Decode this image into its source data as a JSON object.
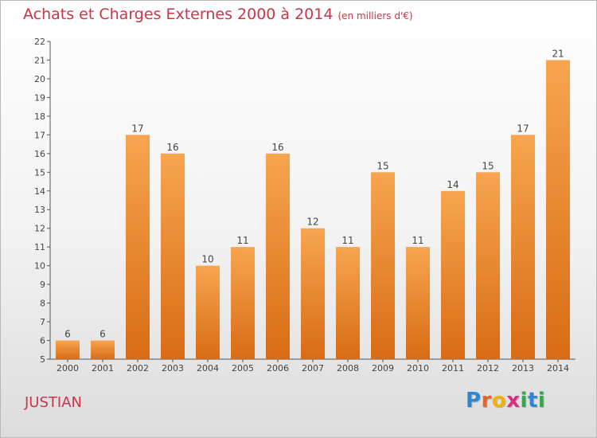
{
  "title": "Achats et Charges Externes 2000 à 2014",
  "unit_note": "(en milliers d'€)",
  "commune": "JUSTIAN",
  "logo": {
    "letters": [
      "P",
      "r",
      "o",
      "x",
      "i",
      "t",
      "i"
    ],
    "colors": [
      "#2e86d6",
      "#e8612c",
      "#f0b400",
      "#d92f7f",
      "#34a84a",
      "#2e86d6",
      "#34a84a"
    ]
  },
  "colors": {
    "bar_light": "#f7a54f",
    "bar_dark": "#d86c14",
    "title": "#c8364a"
  },
  "chart_data": {
    "type": "bar",
    "title": "Achats et Charges Externes 2000 à 2014",
    "xlabel": "",
    "ylabel": "",
    "ylim": [
      5,
      22
    ],
    "yticks": [
      5,
      6,
      7,
      8,
      9,
      10,
      11,
      12,
      13,
      14,
      15,
      16,
      17,
      18,
      19,
      20,
      21,
      22
    ],
    "categories": [
      "2000",
      "2001",
      "2002",
      "2003",
      "2004",
      "2005",
      "2006",
      "2007",
      "2008",
      "2009",
      "2010",
      "2011",
      "2012",
      "2013",
      "2014"
    ],
    "values": [
      6,
      6,
      17,
      16,
      10,
      11,
      16,
      12,
      11,
      15,
      11,
      14,
      15,
      17,
      21
    ],
    "grid": false
  }
}
